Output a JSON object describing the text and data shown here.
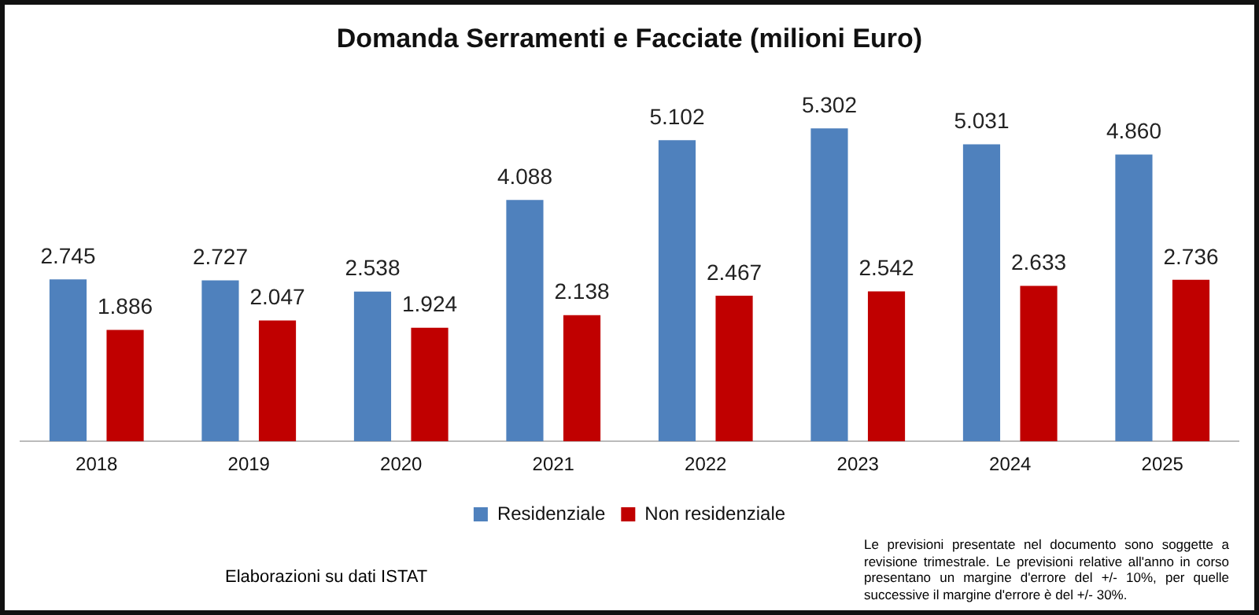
{
  "chart_data": {
    "type": "bar",
    "title": "Domanda Serramenti e Facciate (milioni Euro)",
    "categories": [
      "2018",
      "2019",
      "2020",
      "2021",
      "2022",
      "2023",
      "2024",
      "2025"
    ],
    "series": [
      {
        "name": "Residenziale",
        "color": "#4f81bd",
        "values": [
          2745,
          2727,
          2538,
          4088,
          5102,
          5302,
          5031,
          4860
        ],
        "value_labels": [
          "2.745",
          "2.727",
          "2.538",
          "4.088",
          "5.102",
          "5.302",
          "5.031",
          "4.860"
        ]
      },
      {
        "name": "Non residenziale",
        "color": "#c00000",
        "values": [
          1886,
          2047,
          1924,
          2138,
          2467,
          2542,
          2633,
          2736
        ],
        "value_labels": [
          "1.886",
          "2.047",
          "1.924",
          "2.138",
          "2.467",
          "2.542",
          "2.633",
          "2.736"
        ]
      }
    ],
    "legend": "bottom",
    "grid": false,
    "annotations": [
      "Elaborazioni su dati ISTAT",
      "Le previsioni presentate nel documento sono soggette a revisione trimestrale. Le previsioni relative all'anno in corso presentano un margine d'errore  del +/- 10%, per quelle successive il margine d'errore è del +/- 30%."
    ]
  }
}
